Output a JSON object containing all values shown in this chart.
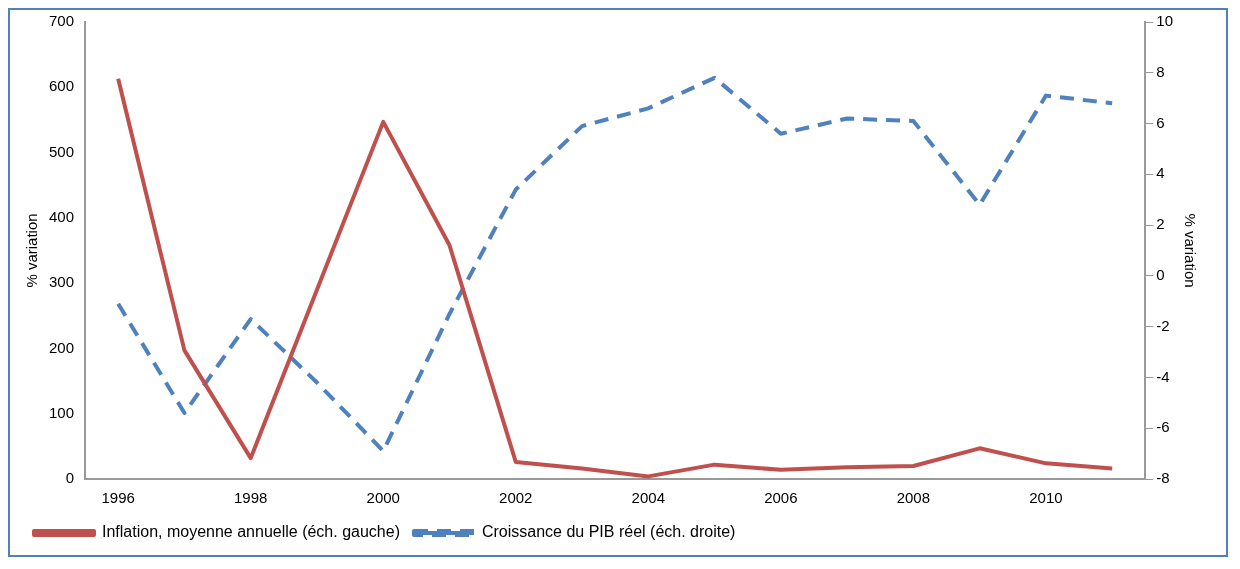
{
  "chart_data": {
    "type": "line",
    "categories": [
      "1996",
      null,
      "1998",
      null,
      "2000",
      null,
      "2002",
      null,
      "2004",
      null,
      "2006",
      null,
      "2008",
      null,
      "2010",
      null
    ],
    "ylabel": "% variation",
    "y2label": "% variation",
    "ylim": [
      0,
      700
    ],
    "yticks": [
      0,
      100,
      200,
      300,
      400,
      500,
      600,
      700
    ],
    "y2lim": [
      -8,
      10
    ],
    "y2ticks": [
      -8,
      -6,
      -4,
      -2,
      0,
      2,
      4,
      6,
      8,
      10
    ],
    "series": [
      {
        "name": "Inflation, moyenne annuelle (éch. gauche)",
        "color": "#c0504d",
        "line_style": "solid",
        "values": [
          613,
          197,
          32,
          290,
          547,
          358,
          26,
          16,
          4,
          22,
          14,
          18,
          20,
          47,
          24,
          16
        ]
      },
      {
        "name": "Croissance du PIB réel (éch. droite)",
        "color": "#4f81bd",
        "line_style": "dashed",
        "axis": "y2",
        "values": [
          -1.1,
          -5.4,
          -1.7,
          -4.2,
          -6.9,
          -1.5,
          3.4,
          5.9,
          6.6,
          7.8,
          5.6,
          6.2,
          6.1,
          2.8,
          7.1,
          6.8
        ]
      }
    ],
    "grid": false,
    "legend": "bottom",
    "marker": "none"
  }
}
